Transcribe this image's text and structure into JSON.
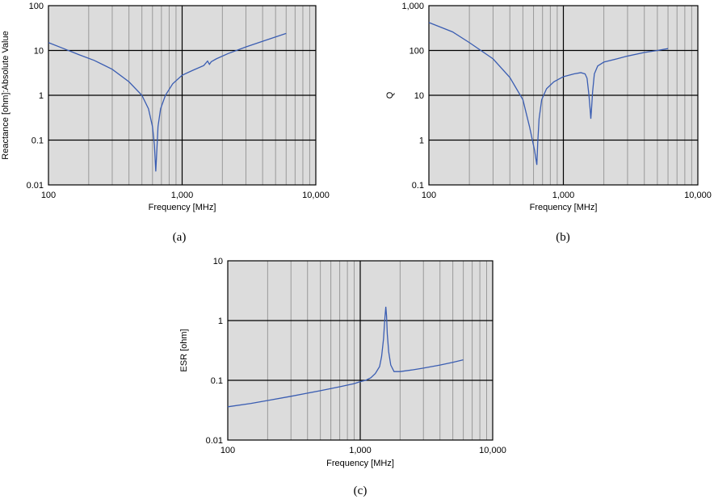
{
  "colors": {
    "plot_background": "#dcdcdc",
    "minor_grid": "#999999",
    "major_grid": "#000000",
    "series_line": "#3a5db2"
  },
  "chart_data": [
    {
      "type": "line",
      "caption": "(a)",
      "xlabel": "Frequency [MHz]",
      "ylabel": "Reactance [ohm]:Absolute Value",
      "xscale": "log",
      "yscale": "log",
      "xlim": [
        100,
        10000
      ],
      "ylim": [
        0.01,
        100
      ],
      "xticks": [
        "100",
        "1,000",
        "10,000"
      ],
      "yticks": [
        "0.01",
        "0.1",
        "1",
        "10",
        "100"
      ],
      "grid": true,
      "legend": "none",
      "series": [
        {
          "x": [
            100,
            130,
            170,
            220,
            300,
            400,
            500,
            560,
            600,
            620,
            635,
            645,
            660,
            690,
            750,
            850,
            1000,
            1200,
            1450,
            1550,
            1600,
            1650,
            1800,
            2200,
            3000,
            4000,
            5000,
            6000
          ],
          "values": [
            15,
            11,
            8,
            6,
            3.8,
            2,
            1,
            0.5,
            0.2,
            0.08,
            0.02,
            0.05,
            0.2,
            0.5,
            1,
            1.8,
            2.8,
            3.6,
            4.6,
            5.8,
            4.9,
            5.6,
            6.5,
            8.5,
            12,
            16,
            20,
            24
          ]
        }
      ]
    },
    {
      "type": "line",
      "caption": "(b)",
      "xlabel": "Frequency [MHz]",
      "ylabel": "Q",
      "xscale": "log",
      "yscale": "log",
      "xlim": [
        100,
        10000
      ],
      "ylim": [
        0.1,
        1000
      ],
      "xticks": [
        "100",
        "1,000",
        "10,000"
      ],
      "yticks": [
        "0.1",
        "1",
        "10",
        "100",
        "1,000"
      ],
      "grid": true,
      "legend": "none",
      "series": [
        {
          "x": [
            100,
            150,
            200,
            300,
            400,
            500,
            560,
            610,
            635,
            645,
            660,
            690,
            750,
            850,
            1000,
            1200,
            1350,
            1450,
            1500,
            1550,
            1580,
            1600,
            1620,
            1650,
            1700,
            1800,
            2000,
            2500,
            3000,
            4000,
            5000,
            6000
          ],
          "values": [
            420,
            260,
            150,
            65,
            25,
            8,
            2,
            0.6,
            0.28,
            0.9,
            3,
            8,
            14,
            20,
            26,
            30,
            32,
            30,
            24,
            10,
            5,
            3,
            5,
            12,
            30,
            45,
            55,
            65,
            75,
            90,
            100,
            110
          ]
        }
      ]
    },
    {
      "type": "line",
      "caption": "(c)",
      "xlabel": "Frequency [MHz]",
      "ylabel": "ESR [ohm]",
      "xscale": "log",
      "yscale": "log",
      "xlim": [
        100,
        10000
      ],
      "ylim": [
        0.01,
        10
      ],
      "xticks": [
        "100",
        "1,000",
        "10,000"
      ],
      "yticks": [
        "0.01",
        "0.1",
        "1",
        "10"
      ],
      "grid": true,
      "legend": "none",
      "series": [
        {
          "x": [
            100,
            150,
            200,
            300,
            400,
            500,
            700,
            900,
            1000,
            1100,
            1200,
            1300,
            1400,
            1450,
            1500,
            1530,
            1560,
            1580,
            1600,
            1640,
            1700,
            1800,
            2000,
            2500,
            3000,
            4000,
            5000,
            6000
          ],
          "values": [
            0.036,
            0.041,
            0.046,
            0.054,
            0.061,
            0.067,
            0.078,
            0.088,
            0.095,
            0.1,
            0.11,
            0.13,
            0.17,
            0.25,
            0.5,
            1.0,
            1.7,
            1.2,
            0.6,
            0.3,
            0.18,
            0.14,
            0.14,
            0.15,
            0.16,
            0.18,
            0.2,
            0.22
          ]
        }
      ]
    }
  ]
}
